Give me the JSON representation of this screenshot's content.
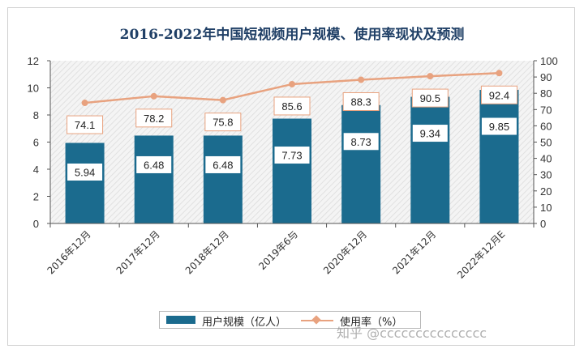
{
  "chart_data": {
    "type": "bar",
    "title": "2016-2022年中国短视频用户规模、使用率现状及预测",
    "categories": [
      "2016年12月",
      "2017年12月",
      "2018年12月",
      "2019年6与",
      "2020年12月",
      "2021年12月",
      "2022年12月E"
    ],
    "series": [
      {
        "name": "用户规模（亿人）",
        "type": "bar",
        "axis": "left",
        "values": [
          5.94,
          6.48,
          6.48,
          7.73,
          8.73,
          9.34,
          9.85
        ]
      },
      {
        "name": "使用率（%）",
        "type": "line",
        "axis": "right",
        "values": [
          74.1,
          78.2,
          75.8,
          85.6,
          88.3,
          90.5,
          92.4
        ]
      }
    ],
    "y_left": {
      "range": [
        0,
        12
      ],
      "ticks": [
        "0",
        "2",
        "4",
        "6",
        "8",
        "10",
        "12"
      ]
    },
    "y_right": {
      "range": [
        0,
        100
      ],
      "ticks": [
        "0",
        "10",
        "20",
        "30",
        "40",
        "50",
        "60",
        "70",
        "80",
        "90",
        "100"
      ]
    },
    "grid": false,
    "legend_position": "bottom",
    "colors": {
      "bar": "#1b6b8e",
      "line": "#e8a27f",
      "title": "#1f3f66"
    }
  },
  "watermark": "知乎 @ccccccccccccccc"
}
